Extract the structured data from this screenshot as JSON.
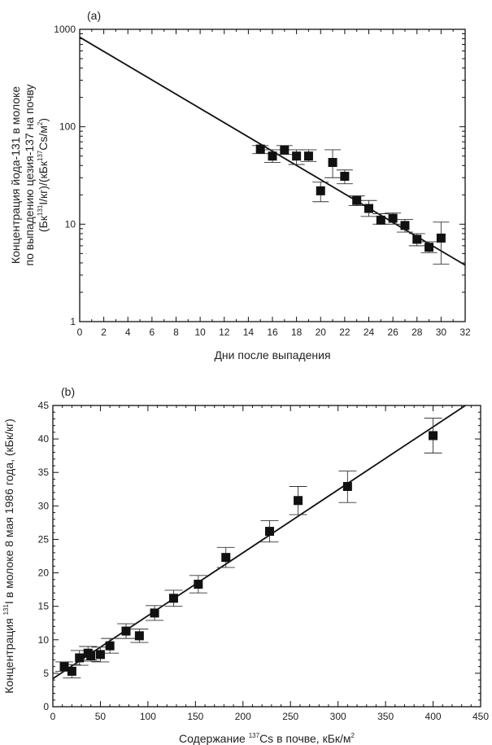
{
  "chart_data": [
    {
      "id": "a",
      "type": "scatter",
      "panel_label": "(a)",
      "xlabel": "Дни после выпадения",
      "ylabel_lines": [
        "Концентрация йода-131 в молоке",
        "по выпадению цезия-137 на почву",
        [
          {
            "t": "(Бк"
          },
          {
            "t": "131",
            "sup": true
          },
          {
            "t": "I/кг)/(кБк"
          },
          {
            "t": "137",
            "sup": true
          },
          {
            "t": "Cs/м"
          },
          {
            "t": "2",
            "sup": true
          },
          {
            "t": ")"
          }
        ]
      ],
      "x_scale": "linear",
      "y_scale": "log",
      "xlim": [
        0,
        32
      ],
      "ylim": [
        1,
        1000
      ],
      "x_ticks": [
        0,
        2,
        4,
        6,
        8,
        10,
        12,
        14,
        16,
        18,
        20,
        22,
        24,
        26,
        28,
        30,
        32
      ],
      "y_ticks": [
        1,
        10,
        100,
        1000
      ],
      "grid": false,
      "x": [
        15,
        16,
        17,
        18,
        19,
        20,
        21,
        22,
        23,
        24,
        25,
        26,
        27,
        28,
        29,
        30
      ],
      "y": [
        59,
        50,
        58,
        50,
        50,
        22,
        43,
        31,
        17.5,
        14.5,
        11,
        11.5,
        9.7,
        7,
        5.8,
        7.2
      ],
      "err_low": [
        53,
        43,
        52,
        41,
        44,
        17,
        30,
        26,
        15.5,
        12,
        10,
        10,
        8.3,
        6,
        5.1,
        3.9
      ],
      "err_high": [
        64,
        58,
        64,
        58,
        58,
        27,
        58,
        36,
        19.5,
        17.5,
        12.8,
        13,
        11.2,
        8,
        6.6,
        10.5
      ],
      "fit_line": {
        "x": [
          0,
          32
        ],
        "y": [
          830,
          3.8
        ]
      }
    },
    {
      "id": "b",
      "type": "scatter",
      "panel_label": "(b)",
      "xlabel": [
        {
          "t": "Содержание "
        },
        {
          "t": "137",
          "sup": true
        },
        {
          "t": "Cs в почве, кБк/м"
        },
        {
          "t": "2",
          "sup": true
        }
      ],
      "ylabel": [
        {
          "t": "Концентрация "
        },
        {
          "t": "131",
          "sup": true
        },
        {
          "t": "I в молоке 8 мая 1986 года, (кБк/кг)"
        }
      ],
      "x_scale": "linear",
      "y_scale": "linear",
      "xlim": [
        0,
        450
      ],
      "ylim": [
        0,
        45
      ],
      "x_ticks": [
        0,
        50,
        100,
        150,
        200,
        250,
        300,
        350,
        400,
        450
      ],
      "y_ticks": [
        0,
        5,
        10,
        15,
        20,
        25,
        30,
        35,
        40,
        45
      ],
      "grid": false,
      "x": [
        12,
        20,
        28,
        37,
        40,
        50,
        60,
        77,
        91,
        107,
        127,
        153,
        182,
        228,
        258,
        310,
        400
      ],
      "y": [
        6,
        5.3,
        7.3,
        8,
        7.6,
        7.8,
        9.1,
        11.3,
        10.6,
        14,
        16.2,
        18.3,
        22.3,
        26.2,
        30.8,
        32.9,
        40.5
      ],
      "err_low": [
        5.3,
        4.3,
        6.2,
        7,
        6.8,
        6.7,
        8,
        10.2,
        9.6,
        12.9,
        15,
        17,
        20.8,
        24.6,
        28.7,
        30.5,
        37.9
      ],
      "err_high": [
        6.7,
        6.3,
        8.4,
        9,
        8.4,
        8.9,
        10.2,
        12.4,
        11.6,
        15.1,
        17.4,
        19.6,
        23.8,
        27.8,
        32.9,
        35.2,
        43.1
      ],
      "fit_line": {
        "x": [
          0,
          434
        ],
        "y": [
          4.2,
          45
        ]
      }
    }
  ]
}
